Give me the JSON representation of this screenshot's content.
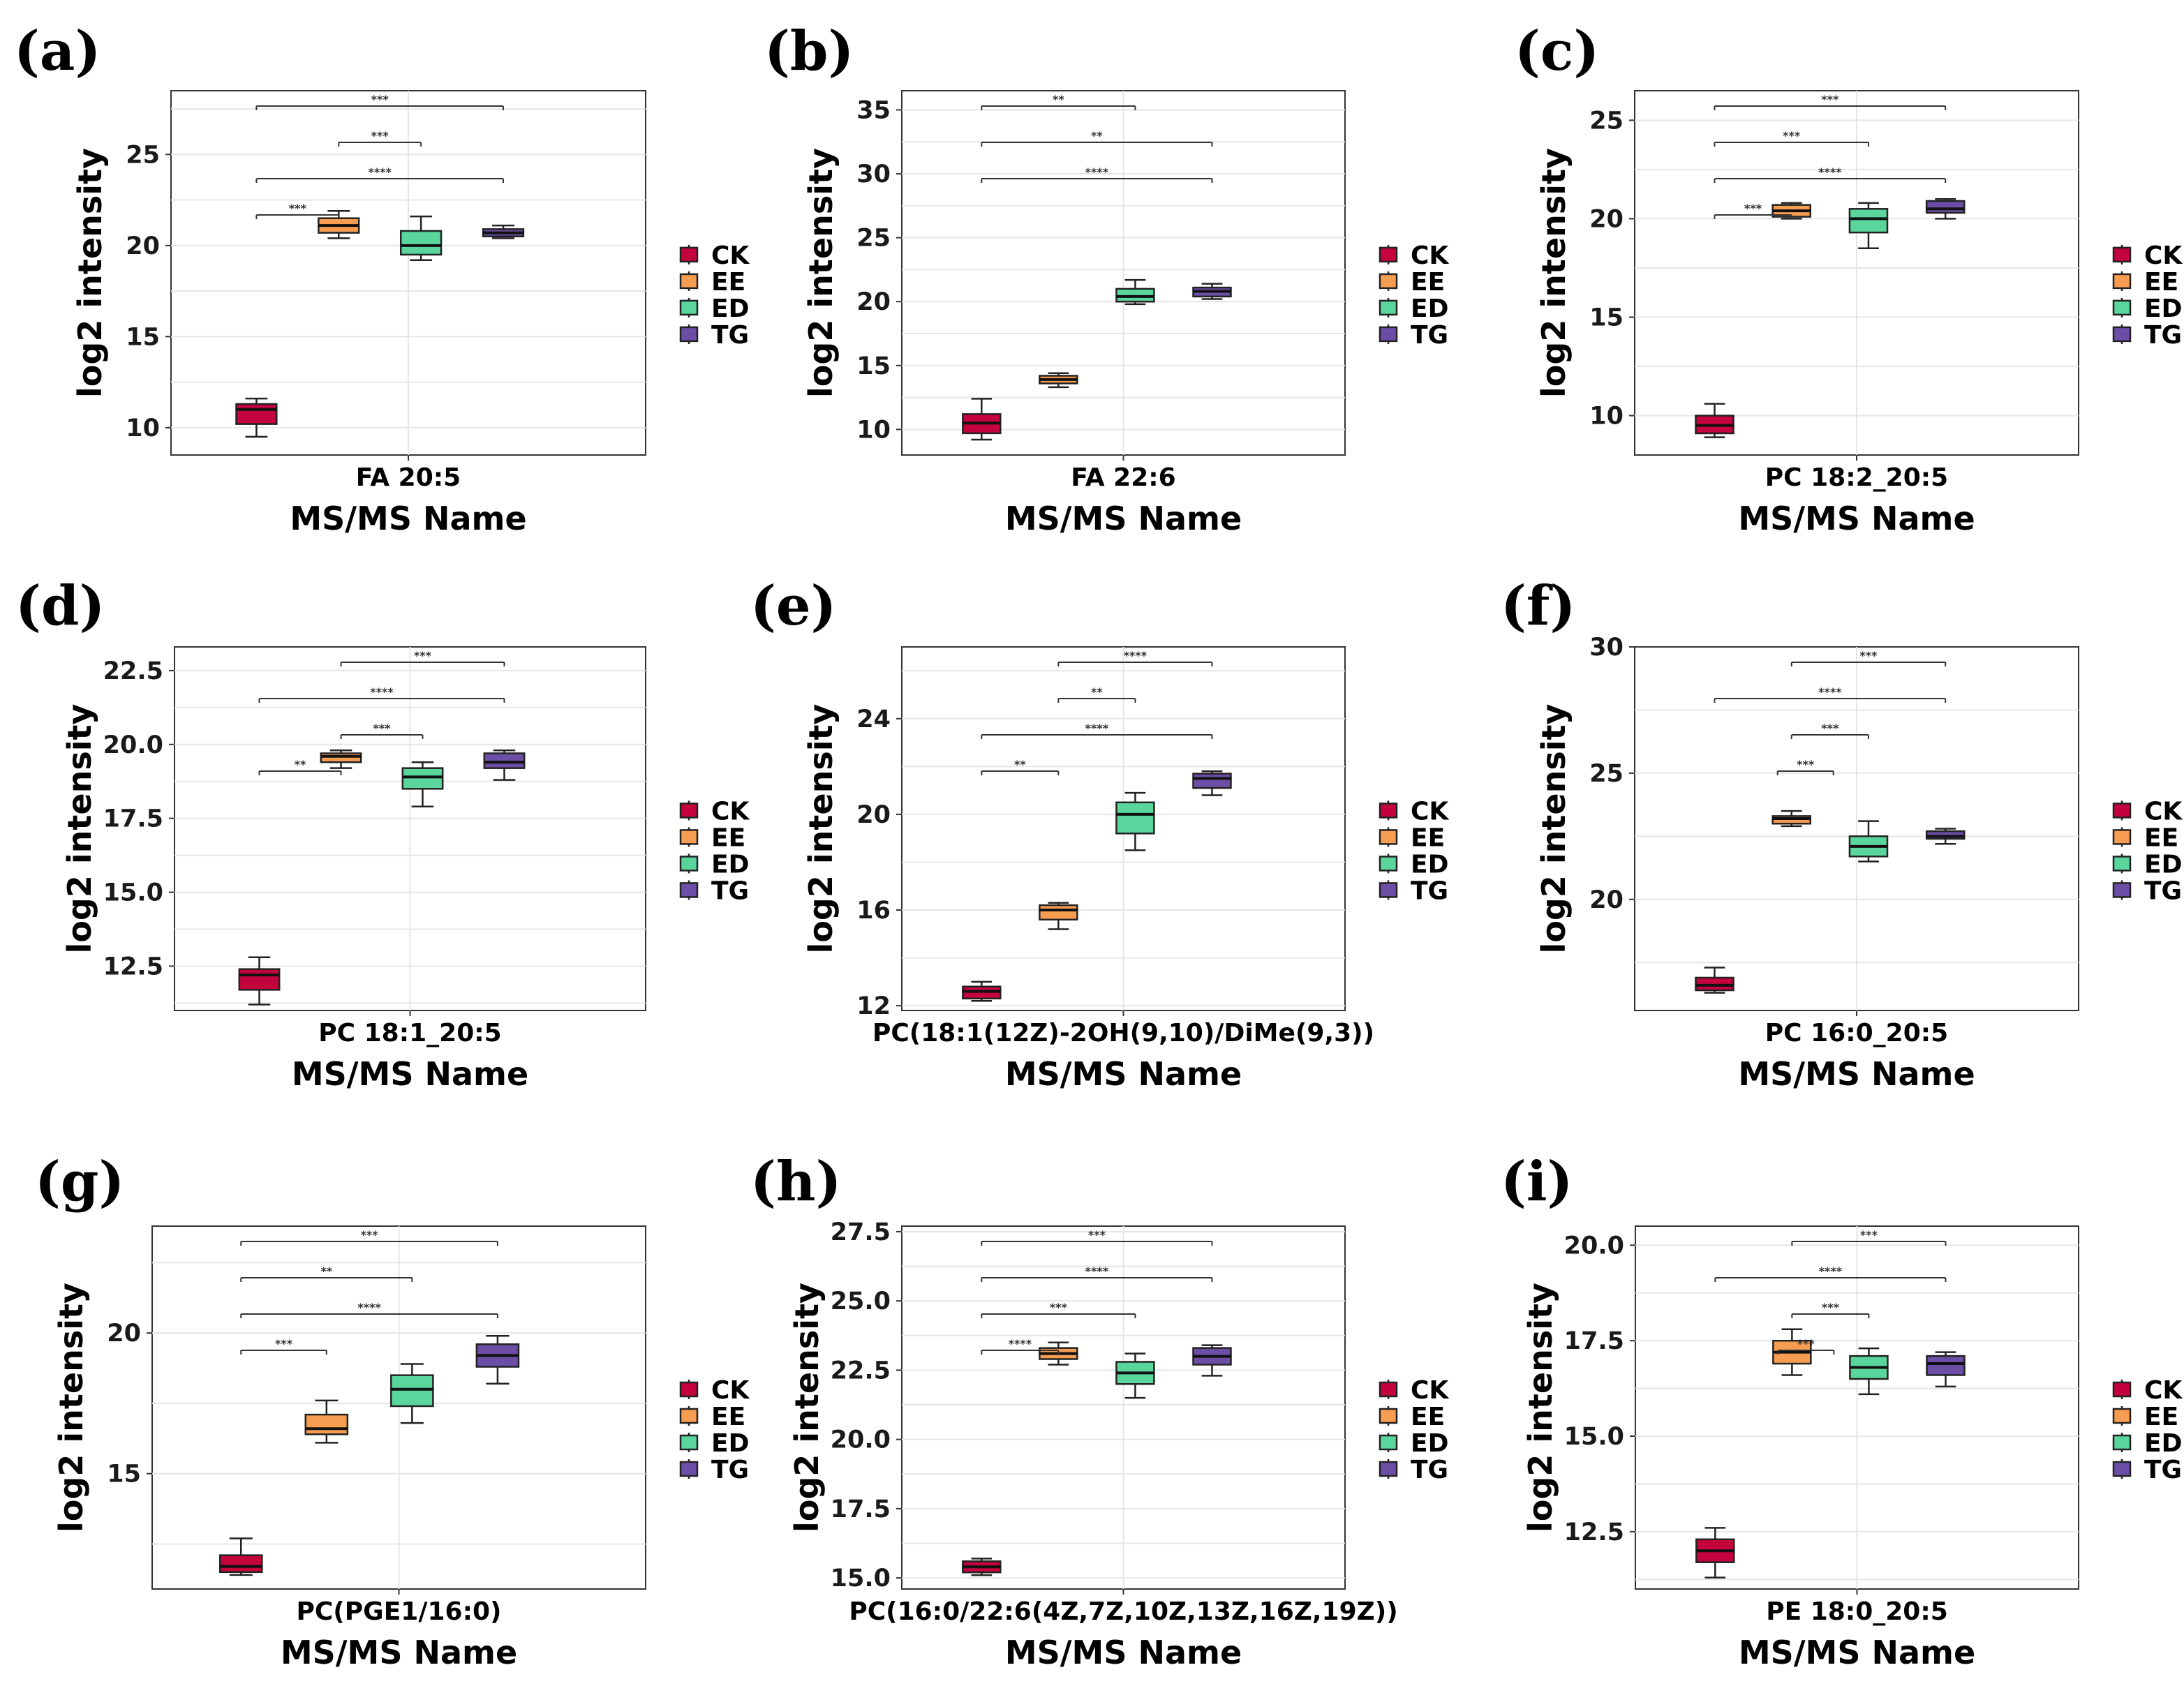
{
  "chart_data": [
    {
      "type": "boxplot",
      "panel_label": "(a)",
      "title": "",
      "xlabel": "MS/MS Name",
      "ylabel": "log2 intensity",
      "category": "FA 20:5",
      "ylim": [
        8.5,
        28.5
      ],
      "yticks": [
        10,
        15,
        20,
        25
      ],
      "ytick_labels": [
        "10",
        "15",
        "20",
        "25"
      ],
      "legend": [
        "CK",
        "EE",
        "ED",
        "TG"
      ],
      "series": [
        {
          "name": "CK",
          "min": 9.5,
          "q1": 10.2,
          "median": 11.0,
          "q3": 11.3,
          "max": 11.6
        },
        {
          "name": "EE",
          "min": 20.4,
          "q1": 20.7,
          "median": 21.1,
          "q3": 21.5,
          "max": 21.9
        },
        {
          "name": "ED",
          "min": 19.2,
          "q1": 19.5,
          "median": 20.0,
          "q3": 20.8,
          "max": 21.6
        },
        {
          "name": "TG",
          "min": 20.4,
          "q1": 20.5,
          "median": 20.7,
          "q3": 20.9,
          "max": 21.1
        }
      ],
      "significance": [
        {
          "from": "CK",
          "to": "TG",
          "label": "***"
        },
        {
          "from": "EE",
          "to": "ED",
          "label": "***"
        },
        {
          "from": "CK",
          "to": "TG",
          "label": "****"
        },
        {
          "from": "CK",
          "to": "EE",
          "label": "***"
        }
      ]
    },
    {
      "type": "boxplot",
      "panel_label": "(b)",
      "title": "",
      "xlabel": "MS/MS Name",
      "ylabel": "log2 intensity",
      "category": "FA 22:6",
      "ylim": [
        8.0,
        36.5
      ],
      "yticks": [
        10,
        15,
        20,
        25,
        30,
        35
      ],
      "ytick_labels": [
        "10",
        "15",
        "20",
        "25",
        "30",
        "35"
      ],
      "legend": [
        "CK",
        "EE",
        "ED",
        "TG"
      ],
      "series": [
        {
          "name": "CK",
          "min": 9.2,
          "q1": 9.7,
          "median": 10.5,
          "q3": 11.2,
          "max": 12.4
        },
        {
          "name": "EE",
          "min": 13.3,
          "q1": 13.6,
          "median": 13.9,
          "q3": 14.2,
          "max": 14.4
        },
        {
          "name": "ED",
          "min": 19.8,
          "q1": 20.0,
          "median": 20.4,
          "q3": 21.0,
          "max": 21.7
        },
        {
          "name": "TG",
          "min": 20.2,
          "q1": 20.4,
          "median": 20.8,
          "q3": 21.1,
          "max": 21.4
        }
      ],
      "significance": [
        {
          "from": "CK",
          "to": "ED",
          "label": "**"
        },
        {
          "from": "CK",
          "to": "TG",
          "label": "**"
        },
        {
          "from": "CK",
          "to": "TG",
          "label": "****"
        }
      ]
    },
    {
      "type": "boxplot",
      "panel_label": "(c)",
      "title": "",
      "xlabel": "MS/MS Name",
      "ylabel": "log2 intensity",
      "category": "PC 18:2_20:5",
      "ylim": [
        8.0,
        26.5
      ],
      "yticks": [
        10,
        15,
        20,
        25
      ],
      "ytick_labels": [
        "10",
        "15",
        "20",
        "25"
      ],
      "legend": [
        "CK",
        "EE",
        "ED",
        "TG"
      ],
      "series": [
        {
          "name": "CK",
          "min": 8.9,
          "q1": 9.1,
          "median": 9.5,
          "q3": 10.0,
          "max": 10.6
        },
        {
          "name": "EE",
          "min": 20.0,
          "q1": 20.1,
          "median": 20.4,
          "q3": 20.7,
          "max": 20.8
        },
        {
          "name": "ED",
          "min": 18.5,
          "q1": 19.3,
          "median": 20.0,
          "q3": 20.5,
          "max": 20.8
        },
        {
          "name": "TG",
          "min": 20.0,
          "q1": 20.3,
          "median": 20.5,
          "q3": 20.9,
          "max": 21.0
        }
      ],
      "significance": [
        {
          "from": "CK",
          "to": "TG",
          "label": "***"
        },
        {
          "from": "CK",
          "to": "ED",
          "label": "***"
        },
        {
          "from": "CK",
          "to": "TG",
          "label": "****"
        },
        {
          "from": "CK",
          "to": "EE",
          "label": "***"
        }
      ]
    },
    {
      "type": "boxplot",
      "panel_label": "(d)",
      "title": "",
      "xlabel": "MS/MS Name",
      "ylabel": "log2 intensity",
      "category": "PC 18:1_20:5",
      "ylim": [
        11.0,
        23.3
      ],
      "yticks": [
        12.5,
        15.0,
        17.5,
        20.0,
        22.5
      ],
      "ytick_labels": [
        "12.5",
        "15.0",
        "17.5",
        "20.0",
        "22.5"
      ],
      "legend": [
        "CK",
        "EE",
        "ED",
        "TG"
      ],
      "series": [
        {
          "name": "CK",
          "min": 11.2,
          "q1": 11.7,
          "median": 12.2,
          "q3": 12.4,
          "max": 12.8
        },
        {
          "name": "EE",
          "min": 19.2,
          "q1": 19.4,
          "median": 19.6,
          "q3": 19.7,
          "max": 19.8
        },
        {
          "name": "ED",
          "min": 17.9,
          "q1": 18.5,
          "median": 18.9,
          "q3": 19.2,
          "max": 19.4
        },
        {
          "name": "TG",
          "min": 18.8,
          "q1": 19.2,
          "median": 19.4,
          "q3": 19.7,
          "max": 19.8
        }
      ],
      "significance": [
        {
          "from": "EE",
          "to": "TG",
          "label": "***"
        },
        {
          "from": "CK",
          "to": "TG",
          "label": "****"
        },
        {
          "from": "EE",
          "to": "ED",
          "label": "***"
        },
        {
          "from": "CK",
          "to": "EE",
          "label": "**"
        }
      ]
    },
    {
      "type": "boxplot",
      "panel_label": "(e)",
      "title": "",
      "xlabel": "MS/MS Name",
      "ylabel": "log2 intensity",
      "category": "PC(18:1(12Z)-2OH(9,10)/DiMe(9,3))",
      "ylim": [
        11.8,
        27.0
      ],
      "yticks": [
        12,
        16,
        20,
        24
      ],
      "ytick_labels": [
        "12",
        "16",
        "20",
        "24"
      ],
      "legend": [
        "CK",
        "EE",
        "ED",
        "TG"
      ],
      "series": [
        {
          "name": "CK",
          "min": 12.2,
          "q1": 12.3,
          "median": 12.6,
          "q3": 12.8,
          "max": 13.0
        },
        {
          "name": "EE",
          "min": 15.2,
          "q1": 15.6,
          "median": 16.0,
          "q3": 16.2,
          "max": 16.3
        },
        {
          "name": "ED",
          "min": 18.5,
          "q1": 19.2,
          "median": 20.0,
          "q3": 20.5,
          "max": 20.9
        },
        {
          "name": "TG",
          "min": 20.8,
          "q1": 21.1,
          "median": 21.5,
          "q3": 21.7,
          "max": 21.8
        }
      ],
      "significance": [
        {
          "from": "EE",
          "to": "TG",
          "label": "****"
        },
        {
          "from": "EE",
          "to": "ED",
          "label": "**"
        },
        {
          "from": "CK",
          "to": "TG",
          "label": "****"
        },
        {
          "from": "CK",
          "to": "EE",
          "label": "**"
        }
      ]
    },
    {
      "type": "boxplot",
      "panel_label": "(f)",
      "title": "",
      "xlabel": "MS/MS Name",
      "ylabel": "log2 intensity",
      "category": "PC 16:0_20:5",
      "ylim": [
        15.6,
        30.0
      ],
      "yticks": [
        20,
        25,
        30
      ],
      "ytick_labels": [
        "20",
        "25",
        "30"
      ],
      "legend": [
        "CK",
        "EE",
        "ED",
        "TG"
      ],
      "series": [
        {
          "name": "CK",
          "min": 16.3,
          "q1": 16.4,
          "median": 16.6,
          "q3": 16.9,
          "max": 17.3
        },
        {
          "name": "EE",
          "min": 22.9,
          "q1": 23.0,
          "median": 23.2,
          "q3": 23.3,
          "max": 23.5
        },
        {
          "name": "ED",
          "min": 21.5,
          "q1": 21.7,
          "median": 22.1,
          "q3": 22.5,
          "max": 23.1
        },
        {
          "name": "TG",
          "min": 22.2,
          "q1": 22.4,
          "median": 22.5,
          "q3": 22.7,
          "max": 22.8
        }
      ],
      "significance": [
        {
          "from": "EE",
          "to": "TG",
          "label": "***"
        },
        {
          "from": "CK",
          "to": "TG",
          "label": "****"
        },
        {
          "from": "EE",
          "to": "ED",
          "label": "***"
        },
        {
          "from": "EE",
          "to": "EE",
          "label": "***"
        }
      ]
    },
    {
      "type": "boxplot",
      "panel_label": "(g)",
      "title": "",
      "xlabel": "MS/MS Name",
      "ylabel": "log2 intensity",
      "category": "PC(PGE1/16:0)",
      "ylim": [
        10.9,
        23.8
      ],
      "yticks": [
        15,
        20
      ],
      "ytick_labels": [
        "15",
        "20"
      ],
      "legend": [
        "CK",
        "EE",
        "ED",
        "TG"
      ],
      "series": [
        {
          "name": "CK",
          "min": 11.4,
          "q1": 11.5,
          "median": 11.7,
          "q3": 12.1,
          "max": 12.7
        },
        {
          "name": "EE",
          "min": 16.1,
          "q1": 16.4,
          "median": 16.6,
          "q3": 17.1,
          "max": 17.6
        },
        {
          "name": "ED",
          "min": 16.8,
          "q1": 17.4,
          "median": 18.0,
          "q3": 18.5,
          "max": 18.9
        },
        {
          "name": "TG",
          "min": 18.2,
          "q1": 18.8,
          "median": 19.2,
          "q3": 19.6,
          "max": 19.9
        }
      ],
      "significance": [
        {
          "from": "CK",
          "to": "TG",
          "label": "***"
        },
        {
          "from": "CK",
          "to": "ED",
          "label": "**"
        },
        {
          "from": "CK",
          "to": "TG",
          "label": "****"
        },
        {
          "from": "CK",
          "to": "EE",
          "label": "***"
        }
      ]
    },
    {
      "type": "boxplot",
      "panel_label": "(h)",
      "title": "",
      "xlabel": "MS/MS Name",
      "ylabel": "log2 intensity",
      "category": "PC(16:0/22:6(4Z,7Z,10Z,13Z,16Z,19Z))",
      "ylim": [
        14.6,
        27.7
      ],
      "yticks": [
        15.0,
        17.5,
        20.0,
        22.5,
        25.0,
        27.5
      ],
      "ytick_labels": [
        "15.0",
        "17.5",
        "20.0",
        "22.5",
        "25.0",
        "27.5"
      ],
      "legend": [
        "CK",
        "EE",
        "ED",
        "TG"
      ],
      "series": [
        {
          "name": "CK",
          "min": 15.1,
          "q1": 15.2,
          "median": 15.4,
          "q3": 15.6,
          "max": 15.7
        },
        {
          "name": "EE",
          "min": 22.7,
          "q1": 22.9,
          "median": 23.1,
          "q3": 23.3,
          "max": 23.5
        },
        {
          "name": "ED",
          "min": 21.5,
          "q1": 22.0,
          "median": 22.4,
          "q3": 22.8,
          "max": 23.1
        },
        {
          "name": "TG",
          "min": 22.3,
          "q1": 22.7,
          "median": 23.0,
          "q3": 23.3,
          "max": 23.4
        }
      ],
      "significance": [
        {
          "from": "CK",
          "to": "TG",
          "label": "***"
        },
        {
          "from": "CK",
          "to": "TG",
          "label": "****"
        },
        {
          "from": "CK",
          "to": "ED",
          "label": "***"
        },
        {
          "from": "CK",
          "to": "EE",
          "label": "****"
        }
      ]
    },
    {
      "type": "boxplot",
      "panel_label": "(i)",
      "title": "",
      "xlabel": "MS/MS Name",
      "ylabel": "log2 intensity",
      "category": "PE 18:0_20:5",
      "ylim": [
        11.0,
        20.5
      ],
      "yticks": [
        12.5,
        15.0,
        17.5,
        20.0
      ],
      "ytick_labels": [
        "12.5",
        "15.0",
        "17.5",
        "20.0"
      ],
      "legend": [
        "CK",
        "EE",
        "ED",
        "TG"
      ],
      "series": [
        {
          "name": "CK",
          "min": 11.3,
          "q1": 11.7,
          "median": 12.0,
          "q3": 12.3,
          "max": 12.6
        },
        {
          "name": "EE",
          "min": 16.6,
          "q1": 16.9,
          "median": 17.2,
          "q3": 17.5,
          "max": 17.8
        },
        {
          "name": "ED",
          "min": 16.1,
          "q1": 16.5,
          "median": 16.8,
          "q3": 17.1,
          "max": 17.3
        },
        {
          "name": "TG",
          "min": 16.3,
          "q1": 16.6,
          "median": 16.9,
          "q3": 17.1,
          "max": 17.2
        }
      ],
      "significance": [
        {
          "from": "EE",
          "to": "TG",
          "label": "***"
        },
        {
          "from": "CK",
          "to": "TG",
          "label": "****"
        },
        {
          "from": "EE",
          "to": "ED",
          "label": "***"
        },
        {
          "from": "EE",
          "to": "EE",
          "label": "***"
        }
      ]
    }
  ],
  "colors": {
    "CK": "#c3023e",
    "EE": "#f79d52",
    "ED": "#5ad69d",
    "TG": "#6c4ea6"
  }
}
